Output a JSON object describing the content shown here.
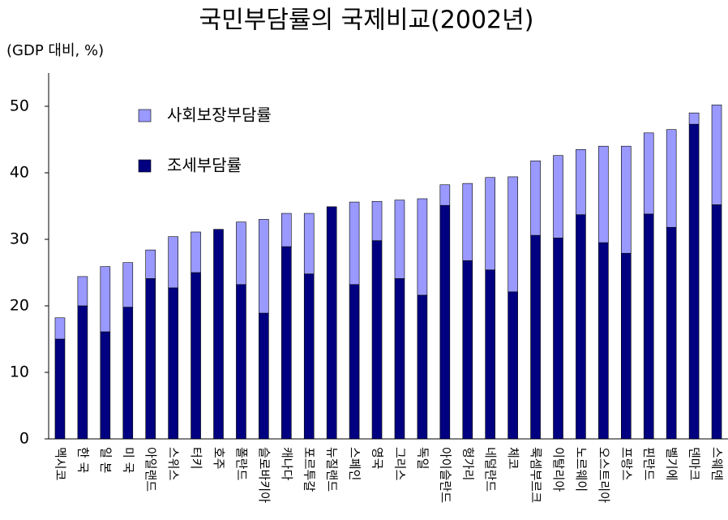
{
  "chart_data": {
    "type": "stacked_bar",
    "title": "국민부담률의 국제비교(2002년)",
    "y_label": "(GDP 대비, %)",
    "categories": [
      "멕시코",
      "한 국",
      "일 본",
      "미 국",
      "아일랜드",
      "스위스",
      "터키",
      "호주",
      "폴란드",
      "슬로바키아",
      "캐나다",
      "포르투갈",
      "뉴질랜드",
      "스페인",
      "영국",
      "그리스",
      "독일",
      "아이슬란드",
      "헝가리",
      "네덜란드",
      "체코",
      "룩셈부르크",
      "이탈리아",
      "노르웨이",
      "오스트리아",
      "프랑스",
      "핀란드",
      "벨기에",
      "덴마크",
      "스웨덴"
    ],
    "series": [
      {
        "name": "조세부담률",
        "color": "#000080",
        "values": [
          15.0,
          20.0,
          16.1,
          19.8,
          24.1,
          22.7,
          25.0,
          31.5,
          23.2,
          18.9,
          28.9,
          24.8,
          34.9,
          23.2,
          29.8,
          24.1,
          21.6,
          35.1,
          26.8,
          25.4,
          22.1,
          30.6,
          30.2,
          33.7,
          29.5,
          27.9,
          33.8,
          31.8,
          47.3,
          35.2
        ]
      },
      {
        "name": "사회보장부담률",
        "color": "#9999ff",
        "values": [
          3.2,
          4.4,
          9.8,
          6.7,
          4.3,
          7.7,
          6.1,
          0,
          9.4,
          14.1,
          5.0,
          9.1,
          0,
          12.4,
          5.9,
          11.8,
          14.5,
          3.1,
          11.6,
          13.9,
          17.3,
          11.2,
          12.4,
          9.8,
          14.5,
          16.1,
          12.2,
          14.7,
          1.7,
          15.0
        ]
      }
    ],
    "ylim": [
      0,
      55
    ],
    "yticks": [
      0,
      10,
      20,
      30,
      40,
      50
    ],
    "grid": false
  }
}
